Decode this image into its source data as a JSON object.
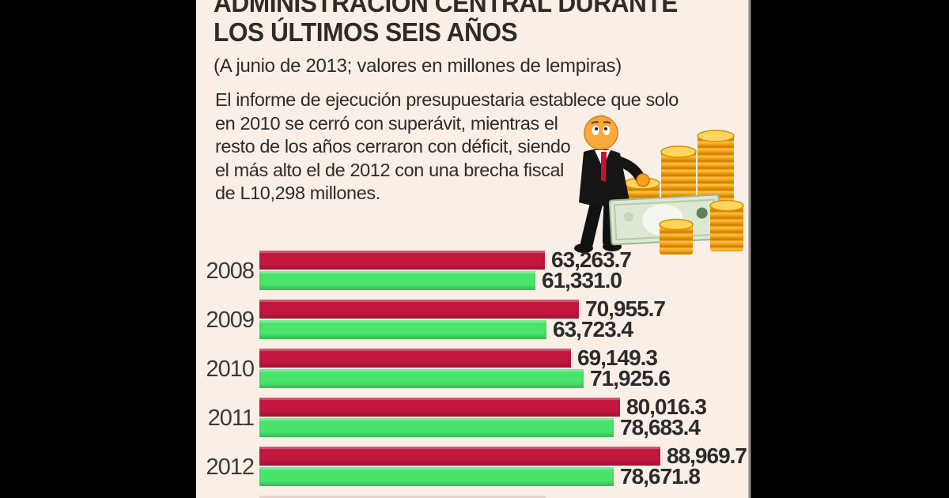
{
  "header": {
    "title_line1": "ADMINISTRACIÓN CENTRAL DURANTE",
    "title_line2": "LOS ÚLTIMOS SEIS AÑOS",
    "subtitle": "(A junio de 2013; valores en millones de lempiras)"
  },
  "description": {
    "lines": [
      "El informe de ejecución presupuestaria establece que solo",
      "en 2010 se cerró con superávit, mientras el",
      "resto de los años cerraron con déficit, siendo",
      "el más alto el de 2012 con una brecha fiscal",
      "de L10,298 millones."
    ]
  },
  "illustration": {
    "name": "businessman-with-coin-stacks-and-banknote"
  },
  "chart_data": {
    "type": "bar",
    "orientation": "horizontal",
    "categories": [
      "2008",
      "2009",
      "2010",
      "2011",
      "2012"
    ],
    "series": [
      {
        "name": "barra-roja",
        "color": "#C2173F",
        "values": [
          63263.7,
          70955.7,
          69149.3,
          80016.3,
          88969.7
        ],
        "labels": [
          "63,263.7",
          "70,955.7",
          "69,149.3",
          "80,016.3",
          "88,969.7"
        ]
      },
      {
        "name": "barra-verde",
        "color": "#49E56B",
        "values": [
          61331.0,
          63723.4,
          71925.6,
          78683.4,
          78671.8
        ],
        "labels": [
          "61,331.0",
          "63,723.4",
          "71,925.6",
          "78,683.4",
          "78,671.8"
        ]
      }
    ],
    "title": "ADMINISTRACIÓN CENTRAL DURANTE LOS ÚLTIMOS SEIS AÑOS",
    "xlabel": "",
    "ylabel": "",
    "xlim": [
      0,
      88969.7
    ],
    "grid": false,
    "notes": "sixth year bar cropped at bottom edge of image"
  },
  "colors": {
    "background": "#F9EFE7",
    "letterbox": "#000000",
    "bar_red": "#C2173F",
    "bar_green": "#49E56B",
    "text": "#2F2B28",
    "coin_gold": "#F49D06",
    "banknote_green": "#DCE8D2"
  }
}
